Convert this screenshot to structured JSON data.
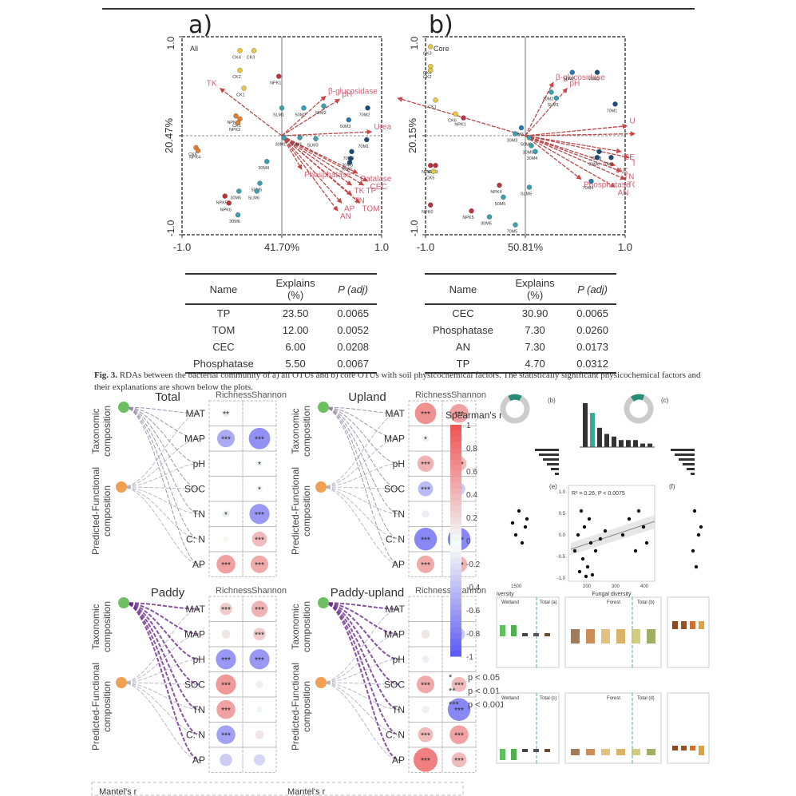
{
  "figure3": {
    "panel_a_letter": "a)",
    "panel_b_letter": "b)",
    "caption_label": "Fig. 3.",
    "caption_text": "RDAs between the bacterial community of a) all OTUs and b) core OTUs with soil physicochemical factors. The statistically significant physicochemical factors and their explanations are shown below the plots."
  },
  "chart_data": [
    {
      "type": "scatter",
      "id": "rda_all",
      "title": "All",
      "xlabel": "41.70%",
      "ylabel": "20.47%",
      "xlim": [
        -1.0,
        1.0
      ],
      "ylim": [
        -1.0,
        1.0
      ],
      "xticks": [
        "-1.0",
        "1.0"
      ],
      "yticks": [
        "-1.0",
        "1.0"
      ],
      "points": [
        {
          "label": "CK4",
          "x": -0.42,
          "y": 0.86,
          "color": "#e8c840"
        },
        {
          "label": "CK3",
          "x": -0.28,
          "y": 0.86,
          "color": "#e8c840"
        },
        {
          "label": "CK2",
          "x": -0.42,
          "y": 0.66,
          "color": "#e8c840"
        },
        {
          "label": "NPK1",
          "x": -0.03,
          "y": 0.6,
          "color": "#c0303a"
        },
        {
          "label": "CK1",
          "x": -0.38,
          "y": 0.48,
          "color": "#e8c840"
        },
        {
          "label": "NPK3",
          "x": -0.46,
          "y": 0.2,
          "color": "#e08030"
        },
        {
          "label": "CK5",
          "x": -0.42,
          "y": 0.17,
          "color": "#e08030"
        },
        {
          "label": "NPK2",
          "x": -0.44,
          "y": 0.13,
          "color": "#e08030"
        },
        {
          "label": "CK6",
          "x": -0.86,
          "y": -0.12,
          "color": "#e08030"
        },
        {
          "label": "NPK4",
          "x": -0.84,
          "y": -0.15,
          "color": "#e08030"
        },
        {
          "label": "30M4",
          "x": -0.15,
          "y": -0.26,
          "color": "#3aa0b0"
        },
        {
          "label": "50M5",
          "x": -0.22,
          "y": -0.48,
          "color": "#3aa0b0"
        },
        {
          "label": "SLM6",
          "x": -0.25,
          "y": -0.56,
          "color": "#3aa0b0"
        },
        {
          "label": "30M5",
          "x": -0.43,
          "y": -0.56,
          "color": "#3aa0b0"
        },
        {
          "label": "NPK5",
          "x": -0.57,
          "y": -0.61,
          "color": "#c0303a"
        },
        {
          "label": "NPK6",
          "x": -0.53,
          "y": -0.68,
          "color": "#c0303a"
        },
        {
          "label": "30M6",
          "x": -0.44,
          "y": -0.8,
          "color": "#3aa0b0"
        },
        {
          "label": "SLM1",
          "x": 0.0,
          "y": 0.28,
          "color": "#3aa0b0"
        },
        {
          "label": "50M2",
          "x": 0.22,
          "y": 0.28,
          "color": "#3aa0b0"
        },
        {
          "label": "SLM2",
          "x": 0.42,
          "y": 0.3,
          "color": "#3aa0b0"
        },
        {
          "label": "70M2",
          "x": 0.86,
          "y": 0.28,
          "color": "#1e4a78"
        },
        {
          "label": "50M3",
          "x": 0.67,
          "y": 0.16,
          "color": "#2a78b0"
        },
        {
          "label": "30M1",
          "x": 0.02,
          "y": -0.02,
          "color": "#3aa0b0"
        },
        {
          "label": "50M1",
          "x": 0.18,
          "y": -0.02,
          "color": "#3aa0b0"
        },
        {
          "label": "SLM3",
          "x": 0.34,
          "y": -0.03,
          "color": "#3aa0b0"
        },
        {
          "label": "70M1",
          "x": 0.85,
          "y": -0.04,
          "color": "#1e4a78"
        },
        {
          "label": "70M4",
          "x": 0.7,
          "y": -0.16,
          "color": "#1e4a78"
        },
        {
          "label": "30M3",
          "x": 0.69,
          "y": -0.23,
          "color": "#1e4a78"
        },
        {
          "label": "70M3",
          "x": 0.68,
          "y": -0.27,
          "color": "#1e4a78"
        }
      ],
      "vectors": [
        {
          "label": "TK",
          "x": -0.62,
          "y": 0.48
        },
        {
          "label": "β-glucosidase",
          "x": 0.44,
          "y": 0.4
        },
        {
          "label": "pH",
          "x": 0.58,
          "y": 0.37
        },
        {
          "label": "Urease",
          "x": 0.9,
          "y": 0.04
        },
        {
          "label": "Catalase",
          "x": 0.76,
          "y": -0.38
        },
        {
          "label": "CEC",
          "x": 0.86,
          "y": -0.46
        },
        {
          "label": "TP",
          "x": 0.82,
          "y": -0.5
        },
        {
          "label": "TK",
          "x": 0.7,
          "y": -0.5
        },
        {
          "label": "TN",
          "x": 0.7,
          "y": -0.6
        },
        {
          "label": "TOM",
          "x": 0.78,
          "y": -0.68
        },
        {
          "label": "AP",
          "x": 0.6,
          "y": -0.68
        },
        {
          "label": "AN",
          "x": 0.56,
          "y": -0.76
        },
        {
          "label": "Phosphatase",
          "x": 0.2,
          "y": -0.34
        }
      ]
    },
    {
      "type": "scatter",
      "id": "rda_core",
      "title": "Core",
      "xlabel": "50.81%",
      "ylabel": "20.15%",
      "xlim": [
        -1.0,
        1.0
      ],
      "ylim": [
        -1.0,
        1.0
      ],
      "xticks": [
        "-1.0",
        "1.0"
      ],
      "yticks": [
        "-1.0",
        "1.0"
      ],
      "points": [
        {
          "label": "CK3",
          "x": -0.95,
          "y": 0.9,
          "color": "#e8c840"
        },
        {
          "label": "CK4",
          "x": -1.22,
          "y": 0.7,
          "color": "#e8c840"
        },
        {
          "label": "CK2",
          "x": -1.08,
          "y": 0.66,
          "color": "#e8c840"
        },
        {
          "label": "CK1",
          "x": -0.9,
          "y": 0.36,
          "color": "#e8c840"
        },
        {
          "label": "CK6",
          "x": -0.7,
          "y": 0.22,
          "color": "#e8c840"
        },
        {
          "label": "NPK1",
          "x": -0.62,
          "y": 0.18,
          "color": "#c0303a"
        },
        {
          "label": "50M3",
          "x": -0.04,
          "y": 0.08,
          "color": "#2a78b0"
        },
        {
          "label": "30M3",
          "x": -0.1,
          "y": 0.02,
          "color": "#3aa0b0"
        },
        {
          "label": "50M2",
          "x": 0.47,
          "y": 0.64,
          "color": "#2a78b0"
        },
        {
          "label": "70M2",
          "x": 0.72,
          "y": 0.64,
          "color": "#1e4a78"
        },
        {
          "label": "30M2",
          "x": 0.26,
          "y": 0.44,
          "color": "#3aa0b0"
        },
        {
          "label": "SLM1",
          "x": 0.31,
          "y": 0.38,
          "color": "#3aa0b0"
        },
        {
          "label": "70M1",
          "x": 0.9,
          "y": 0.32,
          "color": "#1e4a78"
        },
        {
          "label": "NPK2",
          "x": -1.02,
          "y": -0.3,
          "color": "#c0303a"
        },
        {
          "label": "NPK3",
          "x": -0.9,
          "y": -0.3,
          "color": "#c0303a"
        },
        {
          "label": "CK5",
          "x": -0.92,
          "y": -0.36,
          "color": "#e8c840"
        },
        {
          "label": "50M6",
          "x": 0.04,
          "y": -0.02,
          "color": "#3aa0b0"
        },
        {
          "label": "30M5",
          "x": 0.06,
          "y": -0.1,
          "color": "#3aa0b0"
        },
        {
          "label": "30M4",
          "x": 0.1,
          "y": -0.16,
          "color": "#3aa0b0"
        },
        {
          "label": "70M3",
          "x": 0.74,
          "y": -0.16,
          "color": "#1e4a78"
        },
        {
          "label": "30M6",
          "x": 0.72,
          "y": -0.22,
          "color": "#1e4a78"
        },
        {
          "label": "70M6",
          "x": 0.86,
          "y": -0.22,
          "color": "#1e4a78"
        },
        {
          "label": "70M4",
          "x": 0.66,
          "y": -0.46,
          "color": "#2a78b0"
        },
        {
          "label": "NPK4",
          "x": -0.26,
          "y": -0.5,
          "color": "#c0303a"
        },
        {
          "label": "SLM5",
          "x": 0.04,
          "y": -0.52,
          "color": "#3aa0b0"
        },
        {
          "label": "50M5",
          "x": -0.22,
          "y": -0.62,
          "color": "#3aa0b0"
        },
        {
          "label": "NPK6",
          "x": -1.02,
          "y": -0.7,
          "color": "#c0303a"
        },
        {
          "label": "NPK5",
          "x": -0.54,
          "y": -0.76,
          "color": "#c0303a"
        },
        {
          "label": "30M5",
          "x": -0.36,
          "y": -0.82,
          "color": "#3aa0b0"
        },
        {
          "label": "70M5",
          "x": -0.1,
          "y": -0.9,
          "color": "#3aa0b0"
        }
      ],
      "vectors": [
        {
          "label": "TK",
          "x": -1.28,
          "y": 0.38
        },
        {
          "label": "β-glucosidase",
          "x": 0.28,
          "y": 0.54
        },
        {
          "label": "pH",
          "x": 0.42,
          "y": 0.48
        },
        {
          "label": "Urease",
          "x": 1.02,
          "y": 0.1
        },
        {
          "label": "Catalase",
          "x": 1.1,
          "y": 0.02
        },
        {
          "label": "CEC",
          "x": 0.96,
          "y": -0.16
        },
        {
          "label": "TP",
          "x": 1.04,
          "y": -0.22
        },
        {
          "label": "AK",
          "x": 0.9,
          "y": -0.3
        },
        {
          "label": "TN",
          "x": 0.96,
          "y": -0.36
        },
        {
          "label": "TOM",
          "x": 1.0,
          "y": -0.44
        },
        {
          "label": "AN",
          "x": 0.9,
          "y": -0.52
        },
        {
          "label": "Phosphatase",
          "x": 0.56,
          "y": -0.44
        }
      ]
    },
    {
      "type": "table",
      "id": "table_all",
      "columns": [
        "Name",
        "Explains (%)",
        "P (adj)"
      ],
      "rows": [
        [
          "TP",
          "23.50",
          "0.0065"
        ],
        [
          "TOM",
          "12.00",
          "0.0052"
        ],
        [
          "CEC",
          "6.00",
          "0.0208"
        ],
        [
          "Phosphatase",
          "5.50",
          "0.0067"
        ]
      ]
    },
    {
      "type": "table",
      "id": "table_core",
      "columns": [
        "Name",
        "Explains (%)",
        "P (adj)"
      ],
      "rows": [
        [
          "CEC",
          "30.90",
          "0.0065"
        ],
        [
          "Phosphatase",
          "7.30",
          "0.0260"
        ],
        [
          "AN",
          "7.30",
          "0.0173"
        ],
        [
          "TP",
          "4.70",
          "0.0312"
        ]
      ]
    },
    {
      "type": "heatmap",
      "id": "correlation_networks",
      "colorbar_title": "Spearman's r",
      "colorbar_range": [
        -1,
        1
      ],
      "colorbar_ticks": [
        "1",
        "0.8",
        "0.6",
        "0.4",
        "0.2",
        "0",
        "-0.2",
        "-0.4",
        "-0.6",
        "-0.8",
        "-1"
      ],
      "row_labels": [
        "MAT",
        "MAP",
        "pH",
        "SOC",
        "TN",
        "C: N",
        "AP"
      ],
      "col_labels": [
        "Richness",
        "Shannon"
      ],
      "node_labels": [
        "Taxonomic composition",
        "Predicted-Functional composition"
      ],
      "significance_legend": [
        {
          "symbol": "*",
          "text": "p < 0.05"
        },
        {
          "symbol": "**",
          "text": "p < 0.01"
        },
        {
          "symbol": "***",
          "text": "p < 0.001"
        }
      ],
      "panels": [
        {
          "title": "Total",
          "cells": [
            [
              {
                "r": 0.1,
                "sig": "**"
              },
              {
                "r": 0.0,
                "sig": ""
              }
            ],
            [
              {
                "r": -0.5,
                "sig": "***"
              },
              {
                "r": -0.65,
                "sig": "***"
              }
            ],
            [
              {
                "r": 0.0,
                "sig": ""
              },
              {
                "r": 0.06,
                "sig": "*"
              }
            ],
            [
              {
                "r": 0.0,
                "sig": ""
              },
              {
                "r": -0.06,
                "sig": "*"
              }
            ],
            [
              {
                "r": -0.1,
                "sig": "*"
              },
              {
                "r": -0.6,
                "sig": "***"
              }
            ],
            [
              {
                "r": -0.05,
                "sig": ""
              },
              {
                "r": 0.4,
                "sig": "***"
              }
            ],
            [
              {
                "r": 0.55,
                "sig": "***"
              },
              {
                "r": 0.5,
                "sig": "***"
              }
            ]
          ]
        },
        {
          "title": "Upland",
          "cells": [
            [
              {
                "r": 0.65,
                "sig": "***"
              },
              {
                "r": 0.55,
                "sig": "***"
              }
            ],
            [
              {
                "r": 0.08,
                "sig": "*"
              },
              {
                "r": 0.1,
                "sig": "*"
              }
            ],
            [
              {
                "r": 0.45,
                "sig": "***"
              },
              {
                "r": 0.4,
                "sig": "***"
              }
            ],
            [
              {
                "r": -0.4,
                "sig": "***"
              },
              {
                "r": -0.3,
                "sig": "**"
              }
            ],
            [
              {
                "r": -0.1,
                "sig": ""
              },
              {
                "r": -0.05,
                "sig": ""
              }
            ],
            [
              {
                "r": -0.7,
                "sig": "***"
              },
              {
                "r": -0.7,
                "sig": "***"
              }
            ],
            [
              {
                "r": 0.5,
                "sig": "***"
              },
              {
                "r": 0.45,
                "sig": "***"
              }
            ]
          ]
        },
        {
          "title": "Paddy",
          "cells": [
            [
              {
                "r": 0.3,
                "sig": "***"
              },
              {
                "r": 0.45,
                "sig": "***"
              }
            ],
            [
              {
                "r": 0.15,
                "sig": ""
              },
              {
                "r": 0.3,
                "sig": "***"
              }
            ],
            [
              {
                "r": -0.6,
                "sig": "***"
              },
              {
                "r": -0.6,
                "sig": "***"
              }
            ],
            [
              {
                "r": 0.6,
                "sig": "***"
              },
              {
                "r": 0.1,
                "sig": ""
              }
            ],
            [
              {
                "r": 0.55,
                "sig": "***"
              },
              {
                "r": 0.05,
                "sig": ""
              }
            ],
            [
              {
                "r": -0.55,
                "sig": "***"
              },
              {
                "r": 0.15,
                "sig": ""
              }
            ],
            [
              {
                "r": -0.3,
                "sig": ""
              },
              {
                "r": -0.25,
                "sig": ""
              }
            ]
          ]
        },
        {
          "title": "Paddy-upland",
          "cells": [
            [
              {
                "r": 0.0,
                "sig": ""
              },
              {
                "r": 0.0,
                "sig": ""
              }
            ],
            [
              {
                "r": 0.15,
                "sig": ""
              },
              {
                "r": -0.3,
                "sig": "**"
              }
            ],
            [
              {
                "r": -0.1,
                "sig": ""
              },
              {
                "r": 0.0,
                "sig": ""
              }
            ],
            [
              {
                "r": 0.5,
                "sig": "***"
              },
              {
                "r": 0.4,
                "sig": "***"
              }
            ],
            [
              {
                "r": -0.1,
                "sig": ""
              },
              {
                "r": -0.7,
                "sig": "***"
              }
            ],
            [
              {
                "r": 0.4,
                "sig": "***"
              },
              {
                "r": 0.55,
                "sig": "***"
              }
            ],
            [
              {
                "r": 0.75,
                "sig": "***"
              },
              {
                "r": 0.4,
                "sig": "***"
              }
            ]
          ]
        }
      ],
      "mantel_legend_label": "Mantel's r"
    },
    {
      "type": "scatter",
      "id": "fungal_diversity_scatter",
      "panel_label": "(e)",
      "annotation": "R² = 0.26, P < 0.0075",
      "xlabel": "Fungal diversity",
      "xticks": [
        "200",
        "300",
        "400"
      ],
      "yticks": [
        "1.0",
        "0.5",
        "0.0",
        "-0.5",
        "-1.0"
      ]
    }
  ],
  "right_panels": {
    "upset_labels": [
      "(b)",
      "(c)"
    ],
    "scatter_labels": [
      "(e)",
      "(f)"
    ],
    "left_scatter_xlabel_fragment": "iversity",
    "left_scatter_xtick": "1500",
    "boxplot_headers": [
      "Wetland",
      "Total (a)",
      "Forest",
      "Total (b)",
      "Wetland",
      "Total (c)",
      "Forest",
      "Total (d)"
    ]
  }
}
